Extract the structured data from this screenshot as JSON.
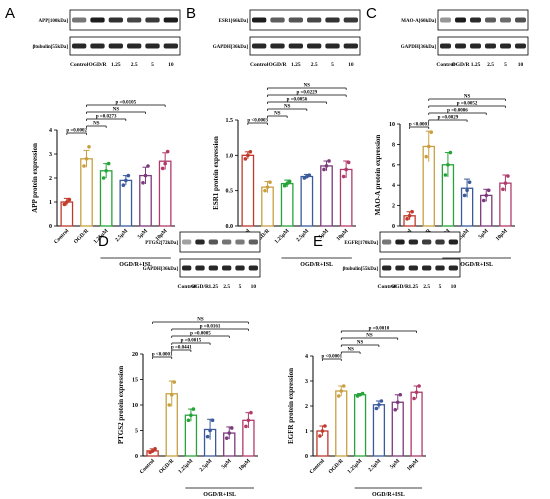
{
  "chart_data": [
    {
      "type": "bar",
      "panel": "A",
      "blots": [
        "APP[100kDa]",
        "βtubulin[55kDa]"
      ],
      "lanes": [
        "Control",
        "OGD/R",
        "1.25",
        "2.5",
        "5",
        "10"
      ],
      "categories": [
        "Control",
        "OGD/R",
        "1.25μM",
        "2.5μM",
        "5μM",
        "10μM"
      ],
      "group_label": "OGD/R+ISL",
      "ylabel": "APP protein expression",
      "ylim": [
        0,
        4
      ],
      "yticks": [
        0,
        1,
        2,
        3,
        4
      ],
      "values": [
        1.0,
        2.8,
        2.3,
        1.9,
        2.1,
        2.7
      ],
      "errors": [
        0.15,
        0.35,
        0.3,
        0.2,
        0.35,
        0.35
      ],
      "points": [
        [
          0.9,
          1.0,
          1.1
        ],
        [
          2.5,
          2.8,
          3.3
        ],
        [
          2.0,
          2.3,
          2.6
        ],
        [
          1.7,
          1.9,
          2.1
        ],
        [
          1.8,
          2.1,
          2.5
        ],
        [
          2.4,
          2.6,
          3.1
        ]
      ],
      "colors": [
        "#c0392b",
        "#c8a040",
        "#27a33a",
        "#3a5a9c",
        "#7b3a7b",
        "#b03a6b"
      ],
      "comparisons": [
        {
          "from": 0,
          "to": 1,
          "label": "p =0.0002"
        },
        {
          "from": 1,
          "to": 2,
          "label": "NS"
        },
        {
          "from": 1,
          "to": 3,
          "label": "p =0.0273"
        },
        {
          "from": 1,
          "to": 4,
          "label": "NS"
        },
        {
          "from": 1,
          "to": 5,
          "label": "p =0.0105"
        }
      ]
    },
    {
      "type": "bar",
      "panel": "B",
      "blots": [
        "ESR1[66kDa]",
        "GAPDH[36kDa]"
      ],
      "lanes": [
        "Control",
        "OGD/R",
        "1.25",
        "2.5",
        "5",
        "10"
      ],
      "categories": [
        "Control",
        "OGD/R",
        "1.25μM",
        "2.5μM",
        "5μM",
        "10μM"
      ],
      "group_label": "OGD/R+ISL",
      "ylabel": "ESR1 protein expression",
      "ylim": [
        0,
        1.5
      ],
      "yticks": [
        0.0,
        0.5,
        1.0,
        1.5
      ],
      "values": [
        1.0,
        0.55,
        0.6,
        0.7,
        0.85,
        0.8
      ],
      "errors": [
        0.05,
        0.08,
        0.05,
        0.03,
        0.07,
        0.12
      ],
      "points": [
        [
          0.95,
          1.0,
          1.05
        ],
        [
          0.5,
          0.55,
          0.62
        ],
        [
          0.57,
          0.6,
          0.63
        ],
        [
          0.68,
          0.7,
          0.72
        ],
        [
          0.8,
          0.85,
          0.92
        ],
        [
          0.7,
          0.8,
          0.9
        ]
      ],
      "colors": [
        "#c0392b",
        "#c8a040",
        "#27a33a",
        "#3a5a9c",
        "#7b3a7b",
        "#b03a6b"
      ],
      "comparisons": [
        {
          "from": 0,
          "to": 1,
          "label": "p <0.0003"
        },
        {
          "from": 1,
          "to": 2,
          "label": "NS"
        },
        {
          "from": 1,
          "to": 3,
          "label": "NS"
        },
        {
          "from": 1,
          "to": 4,
          "label": "p =0.0056"
        },
        {
          "from": 1,
          "to": 5,
          "label": "p =0.0229"
        },
        {
          "from": 1,
          "to": 5,
          "label": "NS"
        }
      ]
    },
    {
      "type": "bar",
      "panel": "C",
      "blots": [
        "MAO-A[60kDa]",
        "GAPDH[36kDa]"
      ],
      "lanes": [
        "Control",
        "OGD/R",
        "1.25",
        "2.5",
        "5",
        "10"
      ],
      "categories": [
        "Control",
        "OGD/R",
        "1.25μM",
        "2.5μM",
        "5μM",
        "10μM"
      ],
      "group_label": "OGD/R+ISL",
      "ylabel": "MAO-A protein expression",
      "ylim": [
        0,
        10
      ],
      "yticks": [
        0,
        2,
        4,
        6,
        8,
        10
      ],
      "values": [
        1.0,
        7.8,
        6.0,
        3.7,
        3.0,
        4.2
      ],
      "errors": [
        0.4,
        1.5,
        1.2,
        0.9,
        0.6,
        0.8
      ],
      "points": [
        [
          0.7,
          1.0,
          1.4
        ],
        [
          6.8,
          7.8,
          9.2
        ],
        [
          5.0,
          6.0,
          7.2
        ],
        [
          3.0,
          3.5,
          4.3
        ],
        [
          2.5,
          3.0,
          3.5
        ],
        [
          3.6,
          4.2,
          4.9
        ]
      ],
      "colors": [
        "#c0392b",
        "#c8a040",
        "#27a33a",
        "#3a5a9c",
        "#7b3a7b",
        "#b03a6b"
      ],
      "comparisons": [
        {
          "from": 0,
          "to": 1,
          "label": "p <0.0001"
        },
        {
          "from": 1,
          "to": 3,
          "label": "p =0.0029"
        },
        {
          "from": 1,
          "to": 4,
          "label": "p =0.0006"
        },
        {
          "from": 1,
          "to": 5,
          "label": "p =0.0052"
        },
        {
          "from": 1,
          "to": 5,
          "label": "NS"
        }
      ]
    },
    {
      "type": "bar",
      "panel": "D",
      "blots": [
        "PTGS2[72kDa]",
        "GAPDH[36kDa]"
      ],
      "lanes": [
        "Control",
        "OGD/R",
        "1.25",
        "2.5",
        "5",
        "10"
      ],
      "categories": [
        "Control",
        "OGD/R",
        "1.25μM",
        "2.5μM",
        "5μM",
        "10μM"
      ],
      "group_label": "OGD/R+ISL",
      "ylabel": "PTGS2 protein expression",
      "ylim": [
        0,
        20
      ],
      "yticks": [
        0,
        5,
        10,
        15,
        20
      ],
      "values": [
        1.0,
        12.2,
        8.0,
        5.2,
        4.5,
        7.0
      ],
      "errors": [
        0.4,
        2.5,
        1.2,
        2.0,
        1.2,
        1.5
      ],
      "points": [
        [
          0.7,
          1.0,
          1.4
        ],
        [
          10.0,
          12.0,
          14.5
        ],
        [
          7.0,
          8.0,
          9.2
        ],
        [
          3.8,
          5.0,
          7.0
        ],
        [
          3.5,
          4.5,
          5.5
        ],
        [
          5.8,
          7.0,
          8.5
        ]
      ],
      "colors": [
        "#c0392b",
        "#c8a040",
        "#27a33a",
        "#3a5a9c",
        "#7b3a7b",
        "#b03a6b"
      ],
      "comparisons": [
        {
          "from": 0,
          "to": 1,
          "label": "p <0.0001"
        },
        {
          "from": 1,
          "to": 2,
          "label": "p =0.0441"
        },
        {
          "from": 1,
          "to": 3,
          "label": "p =0.0015"
        },
        {
          "from": 1,
          "to": 4,
          "label": "p =0.0005"
        },
        {
          "from": 1,
          "to": 5,
          "label": "p =0.0161"
        },
        {
          "from": 0,
          "to": 5,
          "label": "NS"
        }
      ]
    },
    {
      "type": "bar",
      "panel": "E",
      "blots": [
        "EGFR[170kDa]",
        "βtubulin[55kDa]"
      ],
      "lanes": [
        "Control",
        "OGD/R",
        "1.25",
        "2.5",
        "5",
        "10"
      ],
      "categories": [
        "Control",
        "OGD/R",
        "1.25μM",
        "2.5μM",
        "5μM",
        "10μM"
      ],
      "group_label": "OGD/R+ISL",
      "ylabel": "EGFR protein expression",
      "ylim": [
        0,
        4
      ],
      "yticks": [
        0,
        1,
        2,
        3,
        4
      ],
      "values": [
        1.0,
        2.6,
        2.45,
        2.05,
        2.15,
        2.55
      ],
      "errors": [
        0.2,
        0.2,
        0.05,
        0.15,
        0.3,
        0.25
      ],
      "points": [
        [
          0.8,
          1.0,
          1.2
        ],
        [
          2.4,
          2.6,
          2.8
        ],
        [
          2.4,
          2.45,
          2.5
        ],
        [
          1.9,
          2.05,
          2.2
        ],
        [
          1.85,
          2.15,
          2.45
        ],
        [
          2.3,
          2.55,
          2.8
        ]
      ],
      "colors": [
        "#c0392b",
        "#c8a040",
        "#27a33a",
        "#3a5a9c",
        "#7b3a7b",
        "#b03a6b"
      ],
      "comparisons": [
        {
          "from": 0,
          "to": 1,
          "label": "p <0.0001"
        },
        {
          "from": 1,
          "to": 2,
          "label": "NS"
        },
        {
          "from": 1,
          "to": 3,
          "label": "NS"
        },
        {
          "from": 1,
          "to": 4,
          "label": "NS"
        },
        {
          "from": 1,
          "to": 5,
          "label": "p =0.0010"
        }
      ]
    }
  ]
}
